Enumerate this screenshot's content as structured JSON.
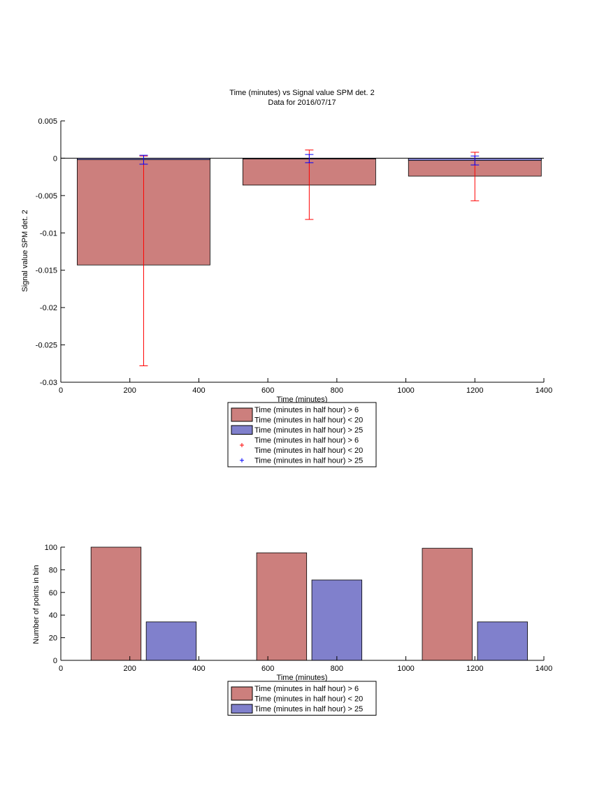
{
  "chart_data": [
    {
      "type": "bar",
      "title": "Time (minutes) vs Signal value SPM det. 2",
      "subtitle": "Data for 2016/07/17",
      "xlabel": "Time (minutes)",
      "ylabel": "Signal value SPM det. 2",
      "xlim": [
        0,
        1400
      ],
      "ylim": [
        -0.03,
        0.005
      ],
      "xticks": [
        0,
        200,
        400,
        600,
        800,
        1000,
        1200,
        1400
      ],
      "xtick_labels": [
        "0",
        "200",
        "400",
        "600",
        "800",
        "1000",
        "1200",
        "1400"
      ],
      "yticks": [
        0.005,
        0,
        -0.005,
        -0.01,
        -0.015,
        -0.02,
        -0.025,
        -0.03
      ],
      "ytick_labels": [
        "0.005",
        "0",
        "-0.005",
        "-0.01",
        "-0.015",
        "-0.02",
        "-0.025",
        "-0.03"
      ],
      "grid": false,
      "legend_position": "below-center",
      "series": [
        {
          "name": "Time (minutes in half hour) > 6\nTime (minutes in half hour) < 20",
          "color": "#cc7f7d",
          "x": [
            240,
            720,
            1200
          ],
          "values": [
            -0.0143,
            -0.0036,
            -0.0024
          ],
          "err_low": [
            -0.0278,
            -0.0082,
            -0.0057
          ],
          "err_high": [
            0.0003,
            0.0011,
            0.0008
          ],
          "err_color": "#ff0000"
        },
        {
          "name": "Time (minutes in half hour) > 25",
          "color": "#8080cc",
          "x": [
            240,
            720,
            1200
          ],
          "values": [
            -0.0002,
            -0.0001,
            -0.0003
          ],
          "err_low": [
            -0.0008,
            -0.0006,
            -0.0009
          ],
          "err_high": [
            0.0004,
            0.0005,
            0.0003
          ],
          "err_color": "#0000ff"
        }
      ],
      "bar_width": 385,
      "legend": [
        {
          "kind": "patch",
          "color": "#cc7f7d",
          "lines": [
            "Time (minutes in half hour) > 6",
            "Time (minutes in half hour) < 20"
          ]
        },
        {
          "kind": "patch",
          "color": "#8080cc",
          "lines": [
            "Time (minutes in half hour) > 25"
          ]
        },
        {
          "kind": "marker",
          "color": "#ff0000",
          "marker": "+",
          "lines": [
            "Time (minutes in half hour) > 6",
            "Time (minutes in half hour) < 20"
          ]
        },
        {
          "kind": "marker",
          "color": "#0000ff",
          "marker": "+",
          "lines": [
            "Time (minutes in half hour) > 25"
          ]
        }
      ]
    },
    {
      "type": "bar",
      "title": "",
      "xlabel": "Time (minutes)",
      "ylabel": "Number of points in bin",
      "xlim": [
        0,
        1400
      ],
      "ylim": [
        0,
        100
      ],
      "xticks": [
        0,
        200,
        400,
        600,
        800,
        1000,
        1200,
        1400
      ],
      "xtick_labels": [
        "0",
        "200",
        "400",
        "600",
        "800",
        "1000",
        "1200",
        "1400"
      ],
      "yticks": [
        0,
        20,
        40,
        60,
        80,
        100
      ],
      "ytick_labels": [
        "0",
        "20",
        "40",
        "60",
        "80",
        "100"
      ],
      "grid": false,
      "legend_position": "below-center",
      "series": [
        {
          "name": "Time (minutes in half hour) > 6\nTime (minutes in half hour) < 20",
          "color": "#cc7f7d",
          "x": [
            160,
            640,
            1120
          ],
          "values": [
            100,
            95,
            99
          ]
        },
        {
          "name": "Time (minutes in half hour) > 25",
          "color": "#8080cc",
          "x": [
            320,
            800,
            1280
          ],
          "values": [
            34,
            71,
            34
          ]
        }
      ],
      "bar_width": 145,
      "legend": [
        {
          "kind": "patch",
          "color": "#cc7f7d",
          "lines": [
            "Time (minutes in half hour) > 6",
            "Time (minutes in half hour) < 20"
          ]
        },
        {
          "kind": "patch",
          "color": "#8080cc",
          "lines": [
            "Time (minutes in half hour) > 25"
          ]
        }
      ]
    }
  ]
}
